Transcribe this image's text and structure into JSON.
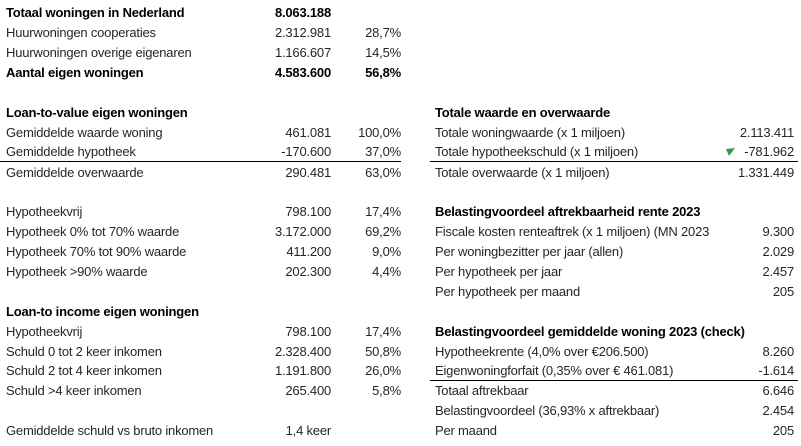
{
  "colors": {
    "background": "#ffffff",
    "text": "#262626",
    "bold_text": "#000000",
    "rule_line": "#000000",
    "formula_marker_green": "#2f9e4c"
  },
  "left_table": {
    "rows": [
      {
        "label": "Totaal woningen in Nederland",
        "value": "8.063.188",
        "pct": "",
        "bold": true
      },
      {
        "label": "Huurwoningen cooperaties",
        "value": "2.312.981",
        "pct": "28,7%"
      },
      {
        "label": "Huurwoningen overige eigenaren",
        "value": "1.166.607",
        "pct": "14,5%"
      },
      {
        "label": "Aantal eigen woningen",
        "value": "4.583.600",
        "pct": "56,8%",
        "bold": true
      },
      {
        "blank": true
      },
      {
        "label": "Loan-to-value eigen woningen",
        "value": "",
        "pct": "",
        "bold": true,
        "header": true
      },
      {
        "label": "Gemiddelde waarde woning",
        "value": "461.081",
        "pct": "100,0%"
      },
      {
        "label": "Gemiddelde hypotheek",
        "value": "-170.600",
        "pct": "37,0%",
        "underline": true
      },
      {
        "label": "Gemiddelde overwaarde",
        "value": "290.481",
        "pct": "63,0%"
      },
      {
        "blank": true
      },
      {
        "label": "Hypotheekvrij",
        "value": "798.100",
        "pct": "17,4%"
      },
      {
        "label": "Hypotheek 0% tot 70% waarde",
        "value": "3.172.000",
        "pct": "69,2%"
      },
      {
        "label": "Hypotheek 70% tot 90% waarde",
        "value": "411.200",
        "pct": "9,0%"
      },
      {
        "label": "Hypotheek >90% waarde",
        "value": "202.300",
        "pct": "4,4%"
      },
      {
        "blank": true
      },
      {
        "label": "Loan-to income eigen woningen",
        "value": "",
        "pct": "",
        "bold": true,
        "header": true
      },
      {
        "label": "Hypotheekvrij",
        "value": "798.100",
        "pct": "17,4%"
      },
      {
        "label": "Schuld 0 tot 2 keer inkomen",
        "value": "2.328.400",
        "pct": "50,8%"
      },
      {
        "label": "Schuld 2 tot 4 keer inkomen",
        "value": "1.191.800",
        "pct": "26,0%"
      },
      {
        "label": "Schuld >4 keer inkomen",
        "value": "265.400",
        "pct": "5,8%"
      },
      {
        "blank": true
      },
      {
        "label": "Gemiddelde schuld vs bruto inkomen",
        "value": "1,4 keer",
        "pct": ""
      }
    ]
  },
  "right_table": {
    "rows": [
      {
        "blank": true
      },
      {
        "blank": true
      },
      {
        "blank": true
      },
      {
        "blank": true
      },
      {
        "blank": true
      },
      {
        "label": "Totale waarde en overwaarde",
        "value": "",
        "bold": true,
        "header": true
      },
      {
        "label": "Totale woningwaarde (x 1 miljoen)",
        "value": "2.113.411"
      },
      {
        "label": "Totale hypotheekschuld (x 1 miljoen)",
        "value": "-781.962",
        "underline": true,
        "marker": true
      },
      {
        "label": "Totale overwaarde (x 1 miljoen)",
        "value": "1.331.449"
      },
      {
        "blank": true
      },
      {
        "label": "Belastingvoordeel aftrekbaarheid rente 2023",
        "value": "",
        "bold": true,
        "header": true
      },
      {
        "label": "Fiscale kosten renteaftrek (x 1 miljoen) (MN 2023",
        "value": "9.300"
      },
      {
        "label": "Per woningbezitter per jaar (allen)",
        "value": "2.029"
      },
      {
        "label": "Per hypotheek per jaar",
        "value": "2.457"
      },
      {
        "label": "Per hypotheek per maand",
        "value": "205"
      },
      {
        "blank": true
      },
      {
        "label": "Belastingvoordeel gemiddelde woning 2023 (check)",
        "value": "",
        "bold": true,
        "header": true
      },
      {
        "label": "Hypotheekrente (4,0% over €206.500)",
        "value": "8.260"
      },
      {
        "label": "Eigenwoningforfait (0,35% over € 461.081)",
        "value": "-1.614",
        "underline": true
      },
      {
        "label": "Totaal aftrekbaar",
        "value": "6.646"
      },
      {
        "label": "Belastingvoordeel (36,93% x aftrekbaar)",
        "value": "2.454"
      },
      {
        "label": "Per maand",
        "value": "205"
      }
    ]
  }
}
